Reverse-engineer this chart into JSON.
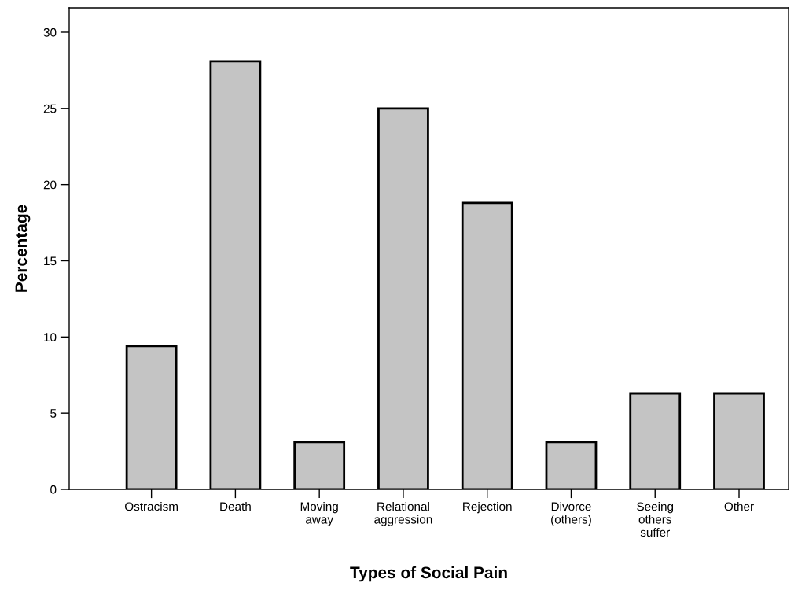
{
  "chart_data": {
    "type": "bar",
    "xlabel": "Types of Social Pain",
    "ylabel": "Percentage",
    "categories": [
      "Ostracism",
      "Death",
      "Moving\naway",
      "Relational\naggression",
      "Rejection",
      "Divorce\n(others)",
      "Seeing\nothers\nsuffer",
      "Other"
    ],
    "values": [
      9.4,
      28.1,
      3.1,
      25,
      18.8,
      3.1,
      6.3,
      6.3
    ],
    "color": "#c4c4c4",
    "ylim": [
      0,
      31.6
    ],
    "yticks": [
      0,
      5,
      10,
      15,
      20,
      25,
      30
    ],
    "grid": false
  }
}
